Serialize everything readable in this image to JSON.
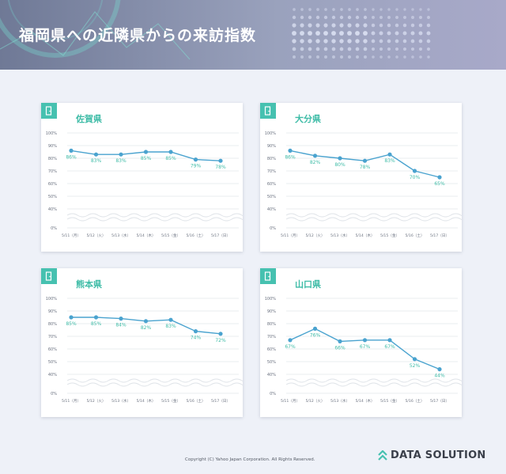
{
  "page_title": "福岡県への近隣県からの来訪指数",
  "copyright": "Copyright (C) Yahoo Japan Corporation. All Rights Reserved.",
  "brand": "DATA SOLUTION",
  "colors": {
    "line": "#4aa3cf",
    "label": "#3fbca7",
    "accent": "#46c1b0",
    "grid": "#e3e6ea"
  },
  "icons": {
    "card_corner": "door-icon",
    "brand": "chevron-up-icon"
  },
  "chart_data": [
    {
      "type": "line",
      "title": "佐賀県",
      "categories": [
        "5/11（月）",
        "5/12（火）",
        "5/13（水）",
        "5/14（木）",
        "5/15（金）",
        "5/16（土）",
        "5/17（日）"
      ],
      "values": [
        86,
        83,
        83,
        85,
        85,
        79,
        78
      ],
      "value_labels": [
        "86%",
        "83%",
        "83%",
        "85%",
        "85%",
        "79%",
        "78%"
      ],
      "y_ticks": [
        "100%",
        "90%",
        "80%",
        "70%",
        "60%",
        "50%",
        "40%",
        "0%"
      ],
      "ylim": [
        40,
        100
      ],
      "axis_break": true,
      "grid": true
    },
    {
      "type": "line",
      "title": "大分県",
      "categories": [
        "5/11（月）",
        "5/12（火）",
        "5/13（水）",
        "5/14（木）",
        "5/15（金）",
        "5/16（土）",
        "5/17（日）"
      ],
      "values": [
        86,
        82,
        80,
        78,
        83,
        70,
        65
      ],
      "value_labels": [
        "86%",
        "82%",
        "80%",
        "78%",
        "83%",
        "70%",
        "65%"
      ],
      "y_ticks": [
        "100%",
        "90%",
        "80%",
        "70%",
        "60%",
        "50%",
        "40%",
        "0%"
      ],
      "ylim": [
        40,
        100
      ],
      "axis_break": true,
      "grid": true
    },
    {
      "type": "line",
      "title": "熊本県",
      "categories": [
        "5/11（月）",
        "5/12（火）",
        "5/13（水）",
        "5/14（木）",
        "5/15（金）",
        "5/16（土）",
        "5/17（日）"
      ],
      "values": [
        85,
        85,
        84,
        82,
        83,
        74,
        72
      ],
      "value_labels": [
        "85%",
        "85%",
        "84%",
        "82%",
        "83%",
        "74%",
        "72%"
      ],
      "y_ticks": [
        "100%",
        "90%",
        "80%",
        "70%",
        "60%",
        "50%",
        "40%",
        "0%"
      ],
      "ylim": [
        40,
        100
      ],
      "axis_break": true,
      "grid": true
    },
    {
      "type": "line",
      "title": "山口県",
      "categories": [
        "5/11（月）",
        "5/12（火）",
        "5/13（水）",
        "5/14（木）",
        "5/15（金）",
        "5/16（土）",
        "5/17（日）"
      ],
      "values": [
        67,
        76,
        66,
        67,
        67,
        52,
        44
      ],
      "value_labels": [
        "67%",
        "76%",
        "66%",
        "67%",
        "67%",
        "52%",
        "44%"
      ],
      "y_ticks": [
        "100%",
        "90%",
        "80%",
        "70%",
        "60%",
        "50%",
        "40%",
        "0%"
      ],
      "ylim": [
        40,
        100
      ],
      "axis_break": true,
      "grid": true
    }
  ]
}
